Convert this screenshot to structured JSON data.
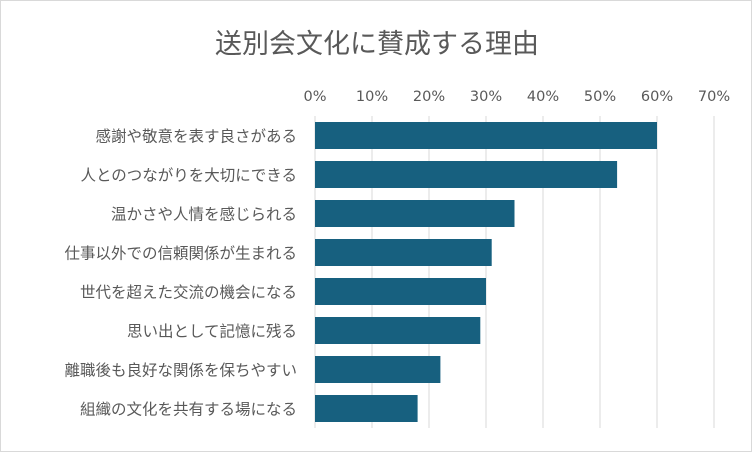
{
  "chart_data": {
    "type": "bar",
    "orientation": "horizontal",
    "title": "送別会文化に賛成する理由",
    "xlabel": "",
    "ylabel": "",
    "xlim": [
      0,
      70
    ],
    "ticks": [
      "0%",
      "10%",
      "20%",
      "30%",
      "40%",
      "50%",
      "60%",
      "70%"
    ],
    "tick_values": [
      0,
      10,
      20,
      30,
      40,
      50,
      60,
      70
    ],
    "axis_position": "top",
    "grid": true,
    "categories": [
      "感謝や敬意を表す良さがある",
      "人とのつながりを大切にできる",
      "温かさや人情を感じられる",
      "仕事以外での信頼関係が生まれる",
      "世代を超えた交流の機会になる",
      "思い出として記憶に残る",
      "離職後も良好な関係を保ちやすい",
      "組織の文化を共有する場になる"
    ],
    "values": [
      60,
      53,
      35,
      31,
      30,
      29,
      22,
      18
    ],
    "bar_color": "#17607f"
  }
}
